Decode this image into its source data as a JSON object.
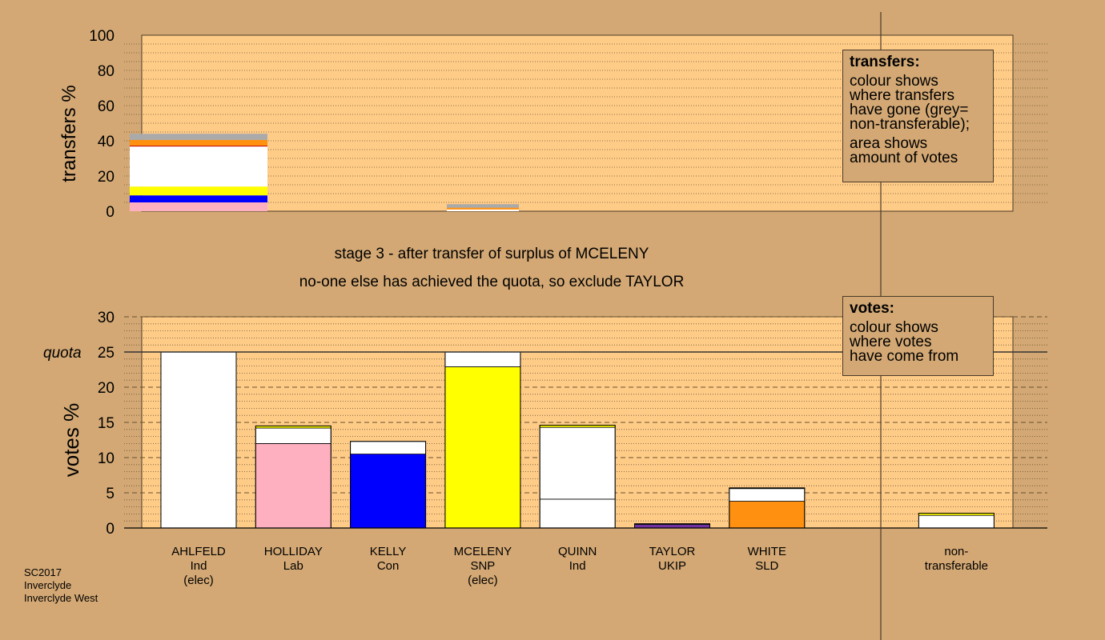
{
  "colors": {
    "background": "#d3a874",
    "plot": "#ffcc88",
    "ind": "#ffffff",
    "lab": "#ffb0c0",
    "con": "#0000ff",
    "snp": "#ffff00",
    "ukip": "#7030a0",
    "sld": "#ff9010",
    "non_transferable": "#aaaaaa",
    "quota_line": "#333333"
  },
  "headings": [
    "stage 3 - after transfer of surplus of MCELENY",
    "no-one else has achieved the quota, so exclude TAYLOR"
  ],
  "footer": {
    "lines": [
      "SC2017",
      "Inverclyde",
      "Inverclyde West"
    ]
  },
  "chart_data": [
    {
      "type": "bar",
      "title": "votes",
      "ylabel": "votes %",
      "ylim": [
        0,
        30
      ],
      "yticks": [
        0,
        5,
        10,
        15,
        20,
        25,
        30
      ],
      "quota": {
        "label": "quota",
        "value": 25
      },
      "categories": [
        [
          "AHLFELD",
          "Ind",
          "(elec)"
        ],
        [
          "HOLLIDAY",
          "Lab"
        ],
        [
          "KELLY",
          "Con"
        ],
        [
          "MCELENY",
          "SNP",
          "(elec)"
        ],
        [
          "QUINN",
          "Ind"
        ],
        [
          "TAYLOR",
          "UKIP"
        ],
        [
          "WHITE",
          "SLD"
        ],
        [],
        [
          "non-",
          "transferable"
        ]
      ],
      "stacks": [
        [
          {
            "value": 25.0,
            "color": "ind"
          }
        ],
        [
          {
            "value": 12.0,
            "color": "lab"
          },
          {
            "value": 2.2,
            "color": "ind"
          },
          {
            "value": 0.3,
            "color": "snp"
          }
        ],
        [
          {
            "value": 10.5,
            "color": "con"
          },
          {
            "value": 1.8,
            "color": "ind"
          }
        ],
        [
          {
            "value": 22.9,
            "color": "snp"
          },
          {
            "value": 2.1,
            "color": "ind"
          }
        ],
        [
          {
            "value": 4.1,
            "color": "ind"
          },
          {
            "value": 10.2,
            "color": "ind"
          },
          {
            "value": 0.3,
            "color": "snp"
          }
        ],
        [
          {
            "value": 0.5,
            "color": "ukip"
          },
          {
            "value": 0.1,
            "color": "ind"
          }
        ],
        [
          {
            "value": 3.8,
            "color": "sld"
          },
          {
            "value": 1.8,
            "color": "ind"
          },
          {
            "value": 0.1,
            "color": "snp"
          }
        ],
        [],
        [
          {
            "value": 1.8,
            "color": "ind"
          },
          {
            "value": 0.3,
            "color": "snp"
          }
        ]
      ],
      "legend": {
        "title": "votes:",
        "lines": [
          "colour shows",
          "where votes",
          "have come from"
        ]
      }
    },
    {
      "type": "bar",
      "title": "transfers",
      "ylabel": "transfers %",
      "ylim": [
        0,
        100
      ],
      "yticks": [
        0,
        20,
        40,
        60,
        80,
        100
      ],
      "stacks": [
        [
          {
            "value": 5,
            "color": "lab"
          },
          {
            "value": 4,
            "color": "con"
          },
          {
            "value": 5,
            "color": "snp"
          },
          {
            "value": 23,
            "color": "ind"
          },
          {
            "value": 3.5,
            "color": "sld"
          },
          {
            "value": 3.5,
            "color": "non_transferable"
          }
        ],
        [
          {
            "value": 1,
            "color": "ind"
          },
          {
            "value": 1,
            "color": "sld"
          },
          {
            "value": 2,
            "color": "non_transferable"
          }
        ]
      ],
      "legend": {
        "title": "transfers:",
        "lines": [
          "colour shows",
          "where transfers",
          "have gone (grey=",
          "non-transferable);",
          "area shows",
          "amount of votes"
        ]
      }
    }
  ]
}
